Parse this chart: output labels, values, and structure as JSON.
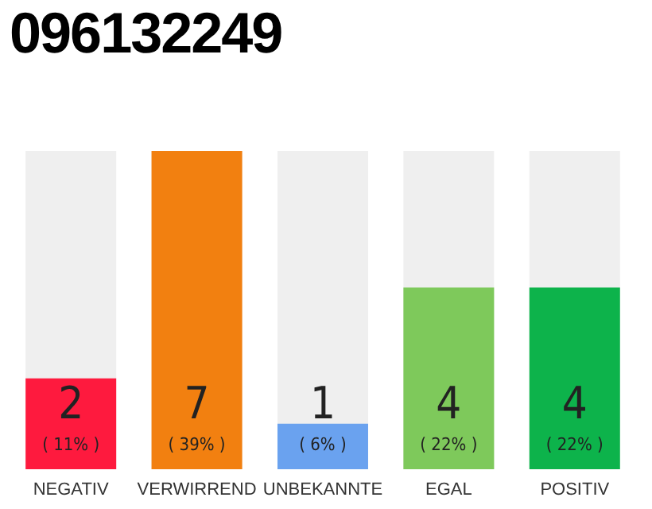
{
  "chart_data": {
    "type": "bar",
    "title": "096132249",
    "categories": [
      "NEGATIV",
      "VERWIRREND",
      "UNBEKANNTE",
      "EGAL",
      "POSITIV"
    ],
    "values": [
      2,
      7,
      1,
      4,
      4
    ],
    "colors": [
      "#fe1a3e",
      "#f28010",
      "#6aa2ef",
      "#7ec95b",
      "#0db34b"
    ],
    "value_labels": [
      "2\n( 11% )",
      "7\n( 39% )",
      "1\n( 6% )",
      "4\n( 22% )",
      "4\n( 22% )"
    ],
    "legend": false,
    "grid": false
  }
}
